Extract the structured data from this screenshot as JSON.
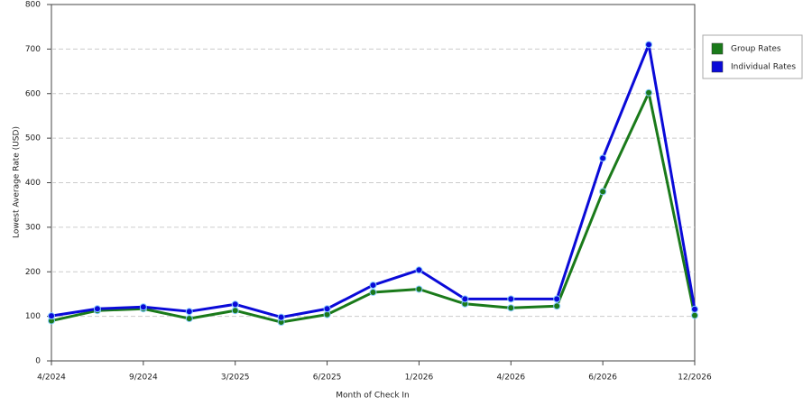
{
  "chart_data": {
    "type": "line",
    "x_label": "Month of Check In",
    "y_label": "Lowest Average Rate (USD)",
    "categories": [
      "4/2024",
      null,
      "9/2024",
      null,
      "3/2025",
      null,
      "6/2025",
      null,
      "1/2026",
      null,
      "4/2026",
      null,
      "6/2026",
      null,
      "12/2026"
    ],
    "series": [
      {
        "name": "Group Rates",
        "color": "#1a7a1a",
        "values": [
          90,
          113,
          117,
          95,
          113,
          87,
          104,
          154,
          161,
          128,
          119,
          123,
          380,
          602,
          102
        ]
      },
      {
        "name": "Individual Rates",
        "color": "#0a0ad8",
        "values": [
          101,
          117,
          121,
          111,
          127,
          98,
          117,
          170,
          204,
          139,
          139,
          139,
          455,
          710,
          116
        ]
      }
    ],
    "ylim": [
      0,
      800
    ],
    "yticks": [
      0,
      100,
      200,
      300,
      400,
      500,
      600,
      700,
      800
    ],
    "grid": true,
    "legend": "right"
  }
}
